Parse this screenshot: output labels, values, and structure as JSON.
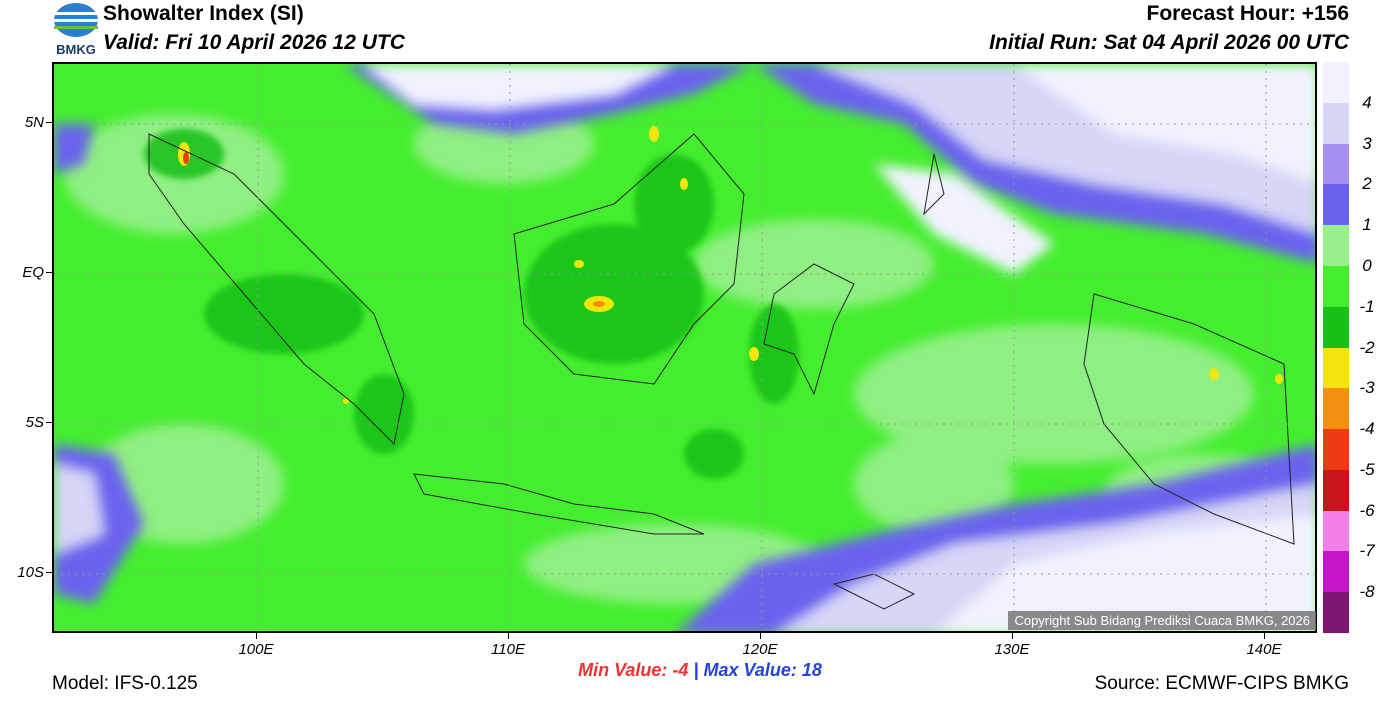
{
  "header": {
    "title": "Showalter Index (SI)",
    "valid": "Valid: Fri 10 April 2026 12 UTC",
    "forecast_hour": "Forecast Hour: +156",
    "initial_run": "Initial Run: Sat 04 April 2026 00 UTC",
    "logo_text": "BMKG"
  },
  "map": {
    "lat_labels": [
      "5N",
      "EQ",
      "5S",
      "10S"
    ],
    "lon_labels": [
      "100E",
      "110E",
      "120E",
      "130E",
      "140E"
    ],
    "copyright": "Copyright Sub Bidang Prediksi Cuaca BMKG, 2026"
  },
  "colorbar": {
    "labels": [
      "4",
      "3",
      "2",
      "1",
      "0",
      "-1",
      "-2",
      "-3",
      "-4",
      "-5",
      "-6",
      "-7",
      "-8"
    ],
    "colors": [
      "#f2f2ff",
      "#d6d6f7",
      "#a48ef0",
      "#6b63ee",
      "#98f08c",
      "#44ee2e",
      "#18c015",
      "#f2e60c",
      "#f29010",
      "#ee3a10",
      "#c8141a",
      "#f27ee8",
      "#c416c8",
      "#7a1870"
    ]
  },
  "stats": {
    "min_text": "Min Value:  -4",
    "separator": "|",
    "max_text": "Max Value:  18"
  },
  "footer": {
    "model": "Model: IFS-0.125",
    "source": "Source: ECMWF-CIPS BMKG"
  }
}
